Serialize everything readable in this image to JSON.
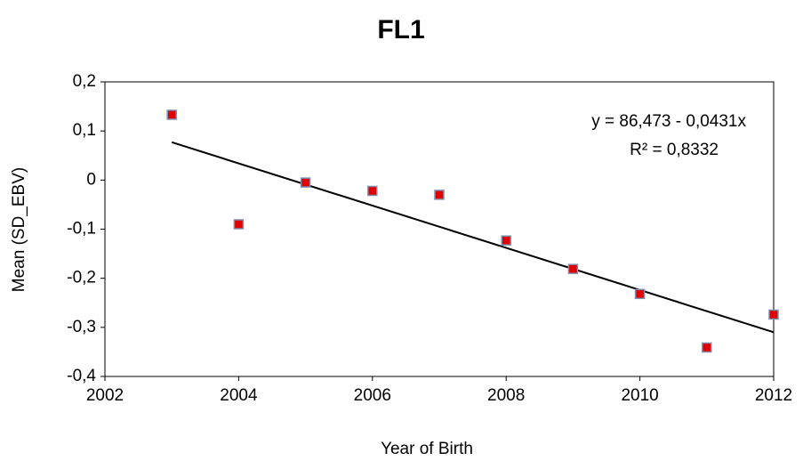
{
  "chart_data": {
    "type": "scatter",
    "title": "FL1",
    "x_label": "Year of Birth",
    "y_label": "Mean (SD_EBV)",
    "x": [
      2003,
      2004,
      2005,
      2006,
      2007,
      2008,
      2009,
      2010,
      2011,
      2012
    ],
    "values": [
      0.133,
      -0.09,
      -0.005,
      -0.022,
      -0.03,
      -0.123,
      -0.181,
      -0.232,
      -0.341,
      -0.274
    ],
    "color": "#e00000",
    "trendline": {
      "x": [
        2003,
        2012
      ],
      "values": [
        0.077,
        -0.31
      ]
    },
    "annotations": [
      "y =  86,473 - 0,0431x",
      "R² = 0,8332"
    ],
    "xlim": [
      2002,
      2012
    ],
    "xticks": [
      2002,
      2004,
      2006,
      2008,
      2010,
      2012
    ],
    "ylim": [
      -0.4,
      0.2
    ],
    "yticks": [
      {
        "value": -0.4,
        "label": "-0,4"
      },
      {
        "value": -0.3,
        "label": "-0,3"
      },
      {
        "value": -0.2,
        "label": "-0,2"
      },
      {
        "value": -0.1,
        "label": "-0,1"
      },
      0,
      {
        "value": 0.1,
        "label": "0,1"
      },
      {
        "value": 0.2,
        "label": "0,2"
      }
    ]
  }
}
